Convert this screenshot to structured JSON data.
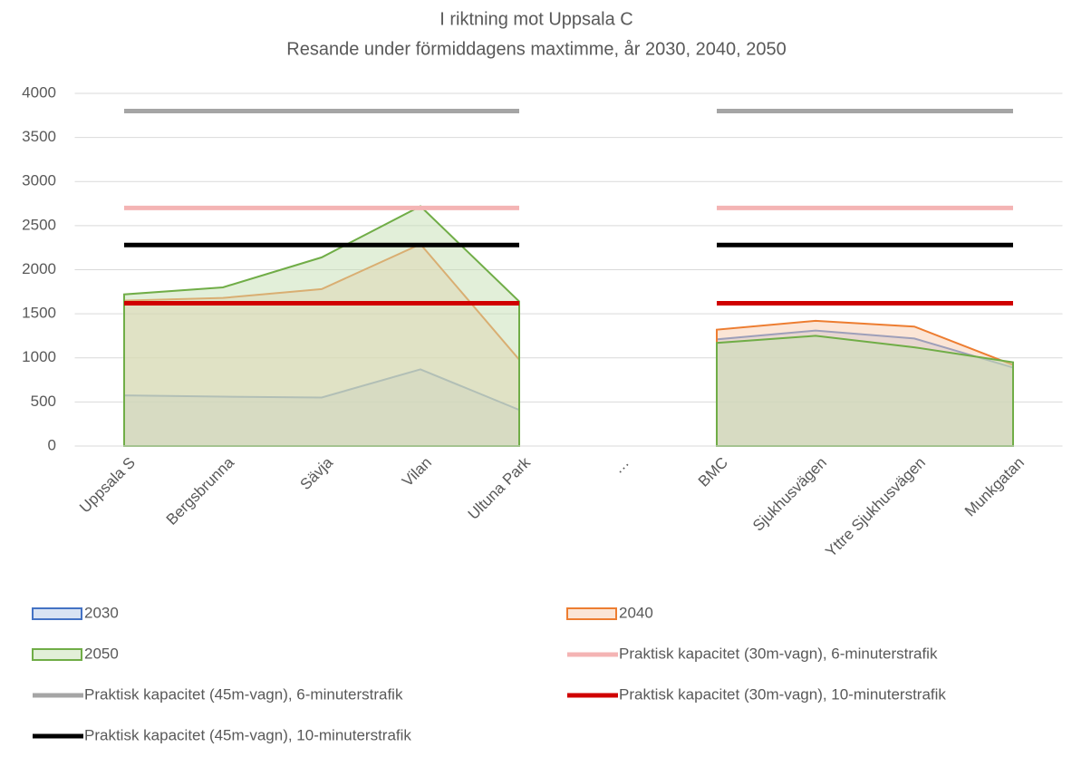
{
  "chart_data": {
    "type": "area",
    "title": "I riktning mot Uppsala C",
    "subtitle": "Resande under förmiddagens maxtimme, år 2030, 2040, 2050",
    "categories": [
      "Uppsala S",
      "Bergsbrunna",
      "Sävja",
      "Vilan",
      "Ultuna Park",
      "…",
      "BMC",
      "Sjukhusvägen",
      "Yttre Sjukhusvägen",
      "Munkgatan"
    ],
    "series": [
      {
        "name": "2030",
        "type": "area",
        "color": "#4472c4",
        "fill": "#b4c7e7",
        "values": [
          575,
          560,
          550,
          870,
          410,
          null,
          1210,
          1310,
          1220,
          890
        ]
      },
      {
        "name": "2040",
        "type": "area",
        "color": "#ed7d31",
        "fill": "#f8cbad",
        "values": [
          1650,
          1680,
          1780,
          2290,
          980,
          null,
          1320,
          1420,
          1355,
          920
        ]
      },
      {
        "name": "2050",
        "type": "area",
        "color": "#70ad47",
        "fill": "#c5e0b4",
        "values": [
          1720,
          1800,
          2140,
          2720,
          1640,
          null,
          1170,
          1250,
          1120,
          950
        ]
      },
      {
        "name": "Praktisk kapacitet (30m-vagn), 6-minuterstrafik",
        "type": "line",
        "color": "#f4b4b4",
        "values": [
          2700,
          2700,
          2700,
          2700,
          2700,
          null,
          2700,
          2700,
          2700,
          2700
        ]
      },
      {
        "name": "Praktisk kapacitet (45m-vagn), 6-minuterstrafik",
        "type": "line",
        "color": "#a5a5a5",
        "values": [
          3800,
          3800,
          3800,
          3800,
          3800,
          null,
          3800,
          3800,
          3800,
          3800
        ]
      },
      {
        "name": "Praktisk kapacitet (30m-vagn), 10-minuterstrafik",
        "type": "line",
        "color": "#d00000",
        "values": [
          1620,
          1620,
          1620,
          1620,
          1620,
          null,
          1620,
          1620,
          1620,
          1620
        ]
      },
      {
        "name": "Praktisk kapacitet (45m-vagn), 10-minuterstrafik",
        "type": "line",
        "color": "#000000",
        "values": [
          2280,
          2280,
          2280,
          2280,
          2280,
          null,
          2280,
          2280,
          2280,
          2280
        ]
      }
    ],
    "ylim": [
      0,
      4000
    ],
    "yticks": [
      0,
      500,
      1000,
      1500,
      2000,
      2500,
      3000,
      3500,
      4000
    ],
    "grid": true,
    "legend": "bottom"
  }
}
